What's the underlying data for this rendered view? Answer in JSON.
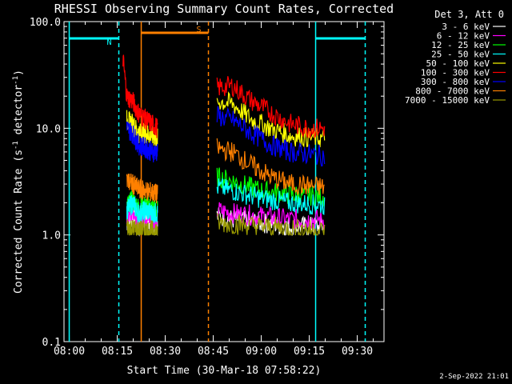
{
  "chart_data": {
    "type": "line",
    "title": "RHESSI Observing Summary Count Rates, Corrected",
    "xlabel": "Start Time (30-Mar-18 07:58:22)",
    "ylabel_main": "Corrected Count Rate (s",
    "ylabel_sup1": "-1",
    "ylabel_mid": " detector",
    "ylabel_sup2": "-1",
    "ylabel_end": ")",
    "y_scale": "log",
    "ylim": [
      0.1,
      100
    ],
    "yticks": [
      {
        "value": 0.1,
        "label": "0.1"
      },
      {
        "value": 1,
        "label": "1.0"
      },
      {
        "value": 10,
        "label": "10.0"
      },
      {
        "value": 100,
        "label": "100.0"
      }
    ],
    "xlim": [
      "07:58:22",
      "09:38:22"
    ],
    "xticks": [
      {
        "t": "08:00",
        "label": "08:00"
      },
      {
        "t": "08:15",
        "label": "08:15"
      },
      {
        "t": "08:30",
        "label": "08:30"
      },
      {
        "t": "08:45",
        "label": "08:45"
      },
      {
        "t": "09:00",
        "label": "09:00"
      },
      {
        "t": "09:15",
        "label": "09:15"
      },
      {
        "t": "09:30",
        "label": "09:30"
      }
    ],
    "legend_header": "Det 3, Att 0",
    "legend_placement": "outside-right",
    "series": [
      {
        "name": "3 - 6 keV",
        "color": "#ffffff",
        "seg1": [
          [
            8.3,
            1.3
          ],
          [
            8.33,
            1.5
          ],
          [
            8.36,
            1.2
          ],
          [
            8.4,
            1.4
          ],
          [
            8.43,
            1.3
          ],
          [
            8.46,
            1.2
          ]
        ],
        "seg2": [
          [
            8.77,
            1.5
          ],
          [
            8.85,
            1.4
          ],
          [
            9.0,
            1.3
          ],
          [
            9.15,
            1.2
          ],
          [
            9.33,
            1.2
          ]
        ]
      },
      {
        "name": "6 - 12 keV",
        "color": "#ff00ff",
        "seg1": [
          [
            8.3,
            1.5
          ],
          [
            8.33,
            1.7
          ],
          [
            8.36,
            1.4
          ],
          [
            8.4,
            1.5
          ],
          [
            8.43,
            1.4
          ],
          [
            8.46,
            1.4
          ]
        ],
        "seg2": [
          [
            8.77,
            1.7
          ],
          [
            8.85,
            1.6
          ],
          [
            9.0,
            1.5
          ],
          [
            9.15,
            1.4
          ],
          [
            9.33,
            1.4
          ]
        ]
      },
      {
        "name": "12 - 25 keV",
        "color": "#00ff00",
        "seg1": [
          [
            8.3,
            1.9
          ],
          [
            8.33,
            2.1
          ],
          [
            8.36,
            1.8
          ],
          [
            8.4,
            1.9
          ],
          [
            8.43,
            1.8
          ],
          [
            8.46,
            1.7
          ]
        ],
        "seg2": [
          [
            8.77,
            3.5
          ],
          [
            8.85,
            3.2
          ],
          [
            9.0,
            2.6
          ],
          [
            9.15,
            2.4
          ],
          [
            9.33,
            2.3
          ]
        ]
      },
      {
        "name": "25 - 50 keV",
        "color": "#00ffff",
        "seg1": [
          [
            8.3,
            1.7
          ],
          [
            8.33,
            2.0
          ],
          [
            8.36,
            1.6
          ],
          [
            8.4,
            1.7
          ],
          [
            8.43,
            1.6
          ],
          [
            8.46,
            1.6
          ]
        ],
        "seg2": [
          [
            8.77,
            2.8
          ],
          [
            8.85,
            2.6
          ],
          [
            9.0,
            2.2
          ],
          [
            9.15,
            2.0
          ],
          [
            9.33,
            1.9
          ]
        ]
      },
      {
        "name": "50 - 100 keV",
        "color": "#ffff00",
        "seg1": [
          [
            8.3,
            12
          ],
          [
            8.33,
            11
          ],
          [
            8.36,
            9
          ],
          [
            8.4,
            9
          ],
          [
            8.43,
            8.5
          ],
          [
            8.46,
            8
          ]
        ],
        "seg2": [
          [
            8.77,
            18
          ],
          [
            8.85,
            17
          ],
          [
            8.95,
            12
          ],
          [
            9.05,
            10
          ],
          [
            9.15,
            8.5
          ],
          [
            9.33,
            8
          ]
        ]
      },
      {
        "name": "100 - 300 keV",
        "color": "#ff0000",
        "seg1": [
          [
            8.28,
            45
          ],
          [
            8.3,
            20
          ],
          [
            8.33,
            18
          ],
          [
            8.36,
            14
          ],
          [
            8.4,
            12
          ],
          [
            8.43,
            11
          ],
          [
            8.46,
            10
          ]
        ],
        "seg2": [
          [
            8.77,
            24
          ],
          [
            8.85,
            25
          ],
          [
            8.95,
            18
          ],
          [
            9.05,
            14
          ],
          [
            9.15,
            11
          ],
          [
            9.25,
            10
          ],
          [
            9.33,
            10
          ]
        ]
      },
      {
        "name": "300 - 800 keV",
        "color": "#0000ff",
        "seg1": [
          [
            8.3,
            10
          ],
          [
            8.33,
            9
          ],
          [
            8.36,
            7
          ],
          [
            8.4,
            6.5
          ],
          [
            8.43,
            6
          ],
          [
            8.46,
            6
          ]
        ],
        "seg2": [
          [
            8.77,
            13
          ],
          [
            8.85,
            12
          ],
          [
            8.95,
            9
          ],
          [
            9.05,
            7
          ],
          [
            9.15,
            6
          ],
          [
            9.33,
            5.5
          ]
        ]
      },
      {
        "name": "800 - 7000 keV",
        "color": "#ff8000",
        "seg1": [
          [
            8.3,
            3.2
          ],
          [
            8.33,
            3.0
          ],
          [
            8.36,
            2.7
          ],
          [
            8.4,
            2.6
          ],
          [
            8.43,
            2.5
          ],
          [
            8.46,
            2.4
          ]
        ],
        "seg2": [
          [
            8.77,
            6.5
          ],
          [
            8.85,
            6.0
          ],
          [
            8.95,
            4.5
          ],
          [
            9.05,
            3.5
          ],
          [
            9.15,
            3.0
          ],
          [
            9.33,
            2.8
          ]
        ]
      },
      {
        "name": "7000 - 15000 keV",
        "color": "#999900",
        "seg1": [
          [
            8.3,
            1.2
          ],
          [
            8.36,
            1.1
          ],
          [
            8.46,
            1.1
          ]
        ],
        "seg2": [
          [
            8.77,
            1.3
          ],
          [
            9.0,
            1.2
          ],
          [
            9.33,
            1.1
          ]
        ]
      }
    ],
    "annotations": {
      "night": [
        {
          "start": "08:00:00",
          "end": "08:15:30",
          "color": "#00ffff",
          "label": "N"
        },
        {
          "start": "09:17:00",
          "end": "09:32:30",
          "color": "#00ffff",
          "label": ""
        }
      ],
      "saa": [
        {
          "start": "08:22:30",
          "end": "08:43:30",
          "color": "#ff8000",
          "label": "S"
        }
      ]
    },
    "footer_date": "2-Sep-2022 21:01"
  }
}
